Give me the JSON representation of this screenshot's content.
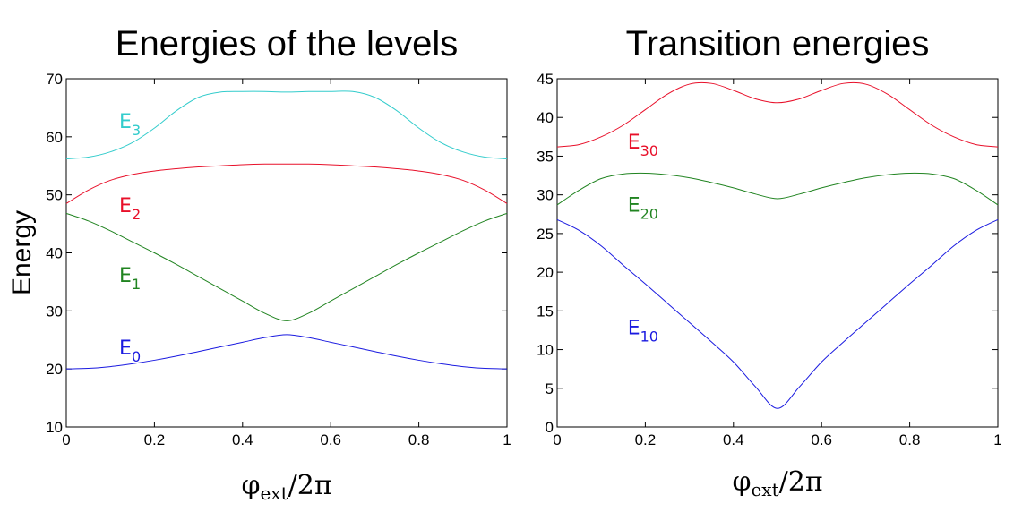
{
  "chart_data": [
    {
      "type": "line",
      "title": "Energies of the levels",
      "ylabel": "Energy",
      "xlabel": {
        "base": "φ",
        "sub": "ext",
        "tail": "/2π"
      },
      "xlim": [
        0,
        1
      ],
      "ylim": [
        10,
        70
      ],
      "xticks": [
        0,
        0.2,
        0.4,
        0.6,
        0.8,
        1
      ],
      "xtick_labels": [
        "0",
        "0.2",
        "0.4",
        "0.6",
        "0.8",
        "1"
      ],
      "yticks": [
        10,
        20,
        30,
        40,
        50,
        60,
        70
      ],
      "ytick_labels": [
        "10",
        "20",
        "30",
        "40",
        "50",
        "60",
        "70"
      ],
      "series": [
        {
          "name": "E3",
          "label": {
            "base": "E",
            "sub": "3"
          },
          "color": "#33cccc",
          "label_at": [
            0.12,
            61.5
          ],
          "x": [
            0,
            0.05,
            0.1,
            0.15,
            0.2,
            0.25,
            0.3,
            0.35,
            0.4,
            0.45,
            0.5,
            0.55,
            0.6,
            0.65,
            0.7,
            0.75,
            0.8,
            0.85,
            0.9,
            0.95,
            1
          ],
          "y": [
            56.2,
            56.5,
            57.4,
            59.0,
            61.5,
            64.5,
            66.8,
            67.7,
            67.8,
            67.8,
            67.7,
            67.8,
            67.8,
            67.8,
            66.8,
            64.5,
            61.5,
            59.0,
            57.4,
            56.5,
            56.2
          ]
        },
        {
          "name": "E2",
          "label": {
            "base": "E",
            "sub": "2"
          },
          "color": "#e8102a",
          "label_at": [
            0.12,
            47.0
          ],
          "x": [
            0,
            0.05,
            0.1,
            0.15,
            0.2,
            0.25,
            0.3,
            0.35,
            0.4,
            0.45,
            0.5,
            0.55,
            0.6,
            0.65,
            0.7,
            0.75,
            0.8,
            0.85,
            0.9,
            0.95,
            1
          ],
          "y": [
            48.5,
            50.8,
            52.5,
            53.5,
            54.1,
            54.5,
            54.8,
            55.0,
            55.2,
            55.3,
            55.3,
            55.3,
            55.2,
            55.0,
            54.8,
            54.5,
            54.1,
            53.5,
            52.5,
            50.8,
            48.5
          ]
        },
        {
          "name": "E1",
          "label": {
            "base": "E",
            "sub": "1"
          },
          "color": "#218421",
          "label_at": [
            0.12,
            35.0
          ],
          "x": [
            0,
            0.05,
            0.1,
            0.15,
            0.2,
            0.25,
            0.3,
            0.35,
            0.4,
            0.45,
            0.5,
            0.55,
            0.6,
            0.65,
            0.7,
            0.75,
            0.8,
            0.85,
            0.9,
            0.95,
            1
          ],
          "y": [
            46.8,
            45.5,
            43.8,
            41.9,
            40.0,
            38.0,
            35.9,
            33.8,
            31.7,
            29.6,
            28.3,
            29.6,
            31.7,
            33.8,
            35.9,
            38.0,
            40.0,
            41.9,
            43.8,
            45.5,
            46.8
          ]
        },
        {
          "name": "E0",
          "label": {
            "base": "E",
            "sub": "0"
          },
          "color": "#1a1ae0",
          "label_at": [
            0.12,
            22.5
          ],
          "x": [
            0,
            0.05,
            0.1,
            0.15,
            0.2,
            0.25,
            0.3,
            0.35,
            0.4,
            0.45,
            0.5,
            0.55,
            0.6,
            0.65,
            0.7,
            0.75,
            0.8,
            0.85,
            0.9,
            0.95,
            1
          ],
          "y": [
            20.0,
            20.1,
            20.4,
            20.9,
            21.5,
            22.2,
            23.0,
            23.8,
            24.6,
            25.4,
            25.9,
            25.4,
            24.6,
            23.8,
            23.0,
            22.2,
            21.5,
            20.9,
            20.4,
            20.1,
            20.0
          ]
        }
      ]
    },
    {
      "type": "line",
      "title": "Transition energies",
      "ylabel": "",
      "xlabel": {
        "base": "φ",
        "sub": "ext",
        "tail": "/2π"
      },
      "xlim": [
        0,
        1
      ],
      "ylim": [
        0,
        45
      ],
      "xticks": [
        0,
        0.2,
        0.4,
        0.6,
        0.8,
        1
      ],
      "xtick_labels": [
        "0",
        "0.2",
        "0.4",
        "0.6",
        "0.8",
        "1"
      ],
      "yticks": [
        0,
        5,
        10,
        15,
        20,
        25,
        30,
        35,
        40,
        45
      ],
      "ytick_labels": [
        "0",
        "5",
        "10",
        "15",
        "20",
        "25",
        "30",
        "35",
        "40",
        "45"
      ],
      "series": [
        {
          "name": "E30",
          "label": {
            "base": "E",
            "sub": "30"
          },
          "color": "#e8102a",
          "label_at": [
            0.16,
            36.0
          ],
          "x": [
            0,
            0.05,
            0.1,
            0.15,
            0.2,
            0.25,
            0.3,
            0.35,
            0.4,
            0.45,
            0.5,
            0.55,
            0.6,
            0.65,
            0.7,
            0.75,
            0.8,
            0.85,
            0.9,
            0.95,
            1
          ],
          "y": [
            36.2,
            36.5,
            37.5,
            39.0,
            41.0,
            43.0,
            44.3,
            44.4,
            43.5,
            42.4,
            41.9,
            42.4,
            43.5,
            44.4,
            44.3,
            43.0,
            41.0,
            39.0,
            37.5,
            36.5,
            36.2
          ]
        },
        {
          "name": "E20",
          "label": {
            "base": "E",
            "sub": "20"
          },
          "color": "#218421",
          "label_at": [
            0.16,
            27.8
          ],
          "x": [
            0,
            0.05,
            0.1,
            0.15,
            0.2,
            0.25,
            0.3,
            0.35,
            0.4,
            0.45,
            0.5,
            0.55,
            0.6,
            0.65,
            0.7,
            0.75,
            0.8,
            0.85,
            0.9,
            0.95,
            1
          ],
          "y": [
            28.7,
            30.6,
            32.1,
            32.7,
            32.8,
            32.6,
            32.2,
            31.6,
            30.9,
            30.1,
            29.5,
            30.1,
            30.9,
            31.6,
            32.2,
            32.6,
            32.8,
            32.7,
            32.1,
            30.6,
            28.7
          ]
        },
        {
          "name": "E10",
          "label": {
            "base": "E",
            "sub": "10"
          },
          "color": "#1a1ae0",
          "label_at": [
            0.16,
            12.0
          ],
          "x": [
            0,
            0.05,
            0.1,
            0.15,
            0.2,
            0.25,
            0.3,
            0.35,
            0.4,
            0.45,
            0.5,
            0.55,
            0.6,
            0.65,
            0.7,
            0.75,
            0.8,
            0.85,
            0.9,
            0.95,
            1
          ],
          "y": [
            26.8,
            25.4,
            23.4,
            20.9,
            18.5,
            16.0,
            13.5,
            11.0,
            8.4,
            5.2,
            2.4,
            5.2,
            8.4,
            11.0,
            13.5,
            16.0,
            18.5,
            20.9,
            23.4,
            25.4,
            26.8
          ]
        }
      ]
    }
  ]
}
